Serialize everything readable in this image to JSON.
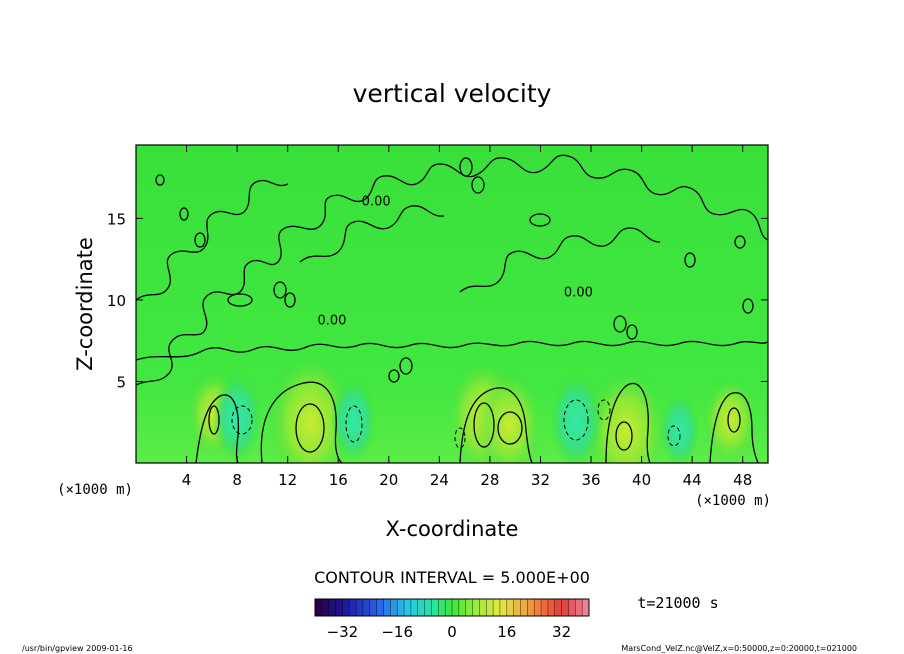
{
  "chart_data": {
    "type": "heatmap",
    "title": "vertical velocity",
    "xlabel": "X-coordinate",
    "ylabel": "Z-coordinate",
    "x_unit": "(×1000 m)",
    "y_unit": "(×1000 m)",
    "xlim": [
      0,
      50
    ],
    "ylim": [
      0,
      19.5
    ],
    "x_ticks": [
      4,
      8,
      12,
      16,
      20,
      24,
      28,
      32,
      36,
      40,
      44,
      48
    ],
    "y_ticks": [
      5,
      10,
      15
    ],
    "contour_interval_text": "CONTOUR INTERVAL = 5.000E+00",
    "time_text": "t=21000 s",
    "contour_labels": [
      {
        "text": "0.00",
        "x": 19,
        "y": 15.8
      },
      {
        "text": "0.00",
        "x": 15.5,
        "y": 8.5
      },
      {
        "text": "0.00",
        "x": 35,
        "y": 10.2
      }
    ],
    "colorbar": {
      "min": -40,
      "max": 40,
      "ticks": [
        -32,
        -16,
        0,
        16,
        32
      ]
    },
    "updrafts": [
      {
        "x": 6.2,
        "z": 3.0,
        "value": 8
      },
      {
        "x": 13.8,
        "z": 2.5,
        "value": 18
      },
      {
        "x": 27.5,
        "z": 2.8,
        "value": 14
      },
      {
        "x": 29.5,
        "z": 2.3,
        "value": 12
      },
      {
        "x": 38.8,
        "z": 1.9,
        "value": 16
      },
      {
        "x": 47.0,
        "z": 2.6,
        "value": 8
      }
    ],
    "downdrafts": [
      {
        "x": 8.0,
        "z": 2.8,
        "value": -8
      },
      {
        "x": 17.2,
        "z": 2.6,
        "value": -7
      },
      {
        "x": 34.8,
        "z": 2.6,
        "value": -9
      },
      {
        "x": 43.0,
        "z": 2.0,
        "value": -5
      }
    ]
  },
  "footer": {
    "left": "/usr/bin/gpview  2009-01-16",
    "right": "MarsCond_VelZ.nc@VelZ,x=0:50000,z=0:20000,t=021000"
  }
}
